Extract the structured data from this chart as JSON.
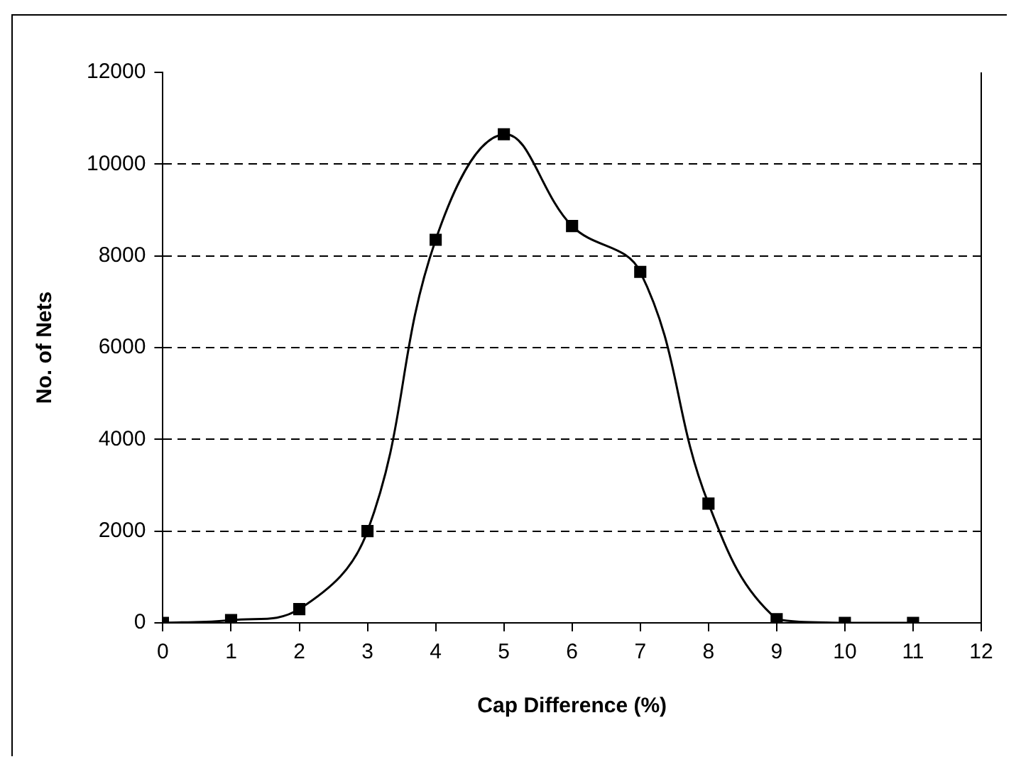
{
  "chart_data": {
    "type": "line",
    "xlabel": "Cap Difference (%)",
    "ylabel": "No. of Nets",
    "x": [
      0,
      1,
      2,
      3,
      4,
      5,
      6,
      7,
      8,
      9,
      10,
      11
    ],
    "series": [
      {
        "color": "#000000",
        "values": [
          0,
          60,
          300,
          2000,
          8350,
          10650,
          8650,
          7650,
          2600,
          80,
          0,
          0
        ]
      }
    ],
    "xlim": [
      0,
      12
    ],
    "xticks": [
      0,
      1,
      2,
      3,
      4,
      5,
      6,
      7,
      8,
      9,
      10,
      11,
      12
    ],
    "ylim": [
      0,
      12000
    ],
    "yticks": [
      0,
      2000,
      4000,
      6000,
      8000,
      10000,
      12000
    ],
    "grid": "y",
    "legend": false,
    "marker": "square",
    "line_style": "solid"
  }
}
